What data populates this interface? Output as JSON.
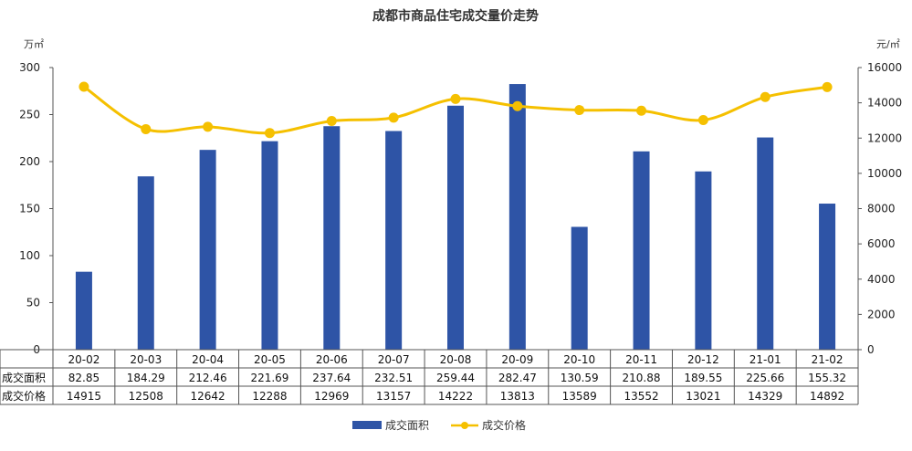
{
  "chart_data": {
    "type": "bar",
    "title": "成都市商品住宅成交量价走势",
    "left_unit": "万㎡",
    "right_unit": "元/㎡",
    "categories": [
      "20-02",
      "20-03",
      "20-04",
      "20-05",
      "20-06",
      "20-07",
      "20-08",
      "20-09",
      "20-10",
      "20-11",
      "20-12",
      "21-01",
      "21-02"
    ],
    "series": [
      {
        "name": "成交面积",
        "type": "bar",
        "axis": "left",
        "color": "#2E54A6",
        "values": [
          82.85,
          184.29,
          212.46,
          221.69,
          237.64,
          232.51,
          259.44,
          282.47,
          130.59,
          210.88,
          189.55,
          225.66,
          155.32
        ],
        "labels": [
          "82.85",
          "184.29",
          "212.46",
          "221.69",
          "237.64",
          "232.51",
          "259.44",
          "282.47",
          "130.59",
          "210.88",
          "189.55",
          "225.66",
          "155.32"
        ]
      },
      {
        "name": "成交价格",
        "type": "line",
        "axis": "right",
        "color": "#F5C000",
        "values": [
          14915,
          12508,
          12642,
          12288,
          12969,
          13157,
          14222,
          13813,
          13589,
          13552,
          13021,
          14329,
          14892
        ],
        "labels": [
          "14915",
          "12508",
          "12642",
          "12288",
          "12969",
          "13157",
          "14222",
          "13813",
          "13589",
          "13552",
          "13021",
          "14329",
          "14892"
        ]
      }
    ],
    "ylim_left": [
      0,
      300
    ],
    "yticks_left": [
      "0",
      "50",
      "100",
      "150",
      "200",
      "250",
      "300"
    ],
    "ylim_right": [
      0,
      16000
    ],
    "yticks_right": [
      "0",
      "2000",
      "4000",
      "6000",
      "8000",
      "10000",
      "12000",
      "14000",
      "16000"
    ],
    "table_row_headers": [
      "成交面积",
      "成交价格"
    ],
    "legend_position": "bottom",
    "grid": false
  }
}
